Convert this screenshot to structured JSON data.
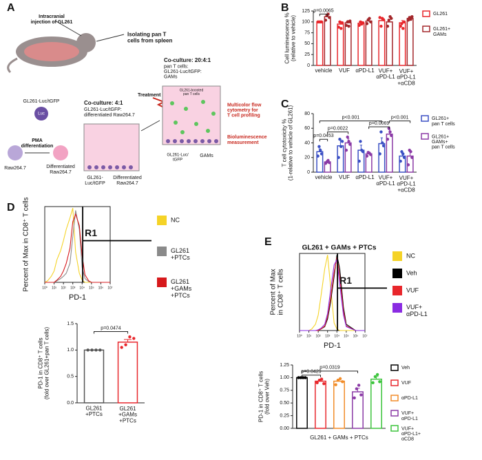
{
  "panels": [
    "A",
    "B",
    "C",
    "D",
    "E"
  ],
  "diagram": {
    "injection": "Intracranial\ninjection of GL261",
    "isolating": "Isolating pan T\ncells from spleen",
    "tumor_cells": "GL261-Luc/tGFP",
    "luc": "Luc",
    "pma": "PMA\ndifferentiation",
    "raw": "Raw264.7",
    "diff_raw": "Differentiated\nRaw264.7",
    "coculture1": "Co-culture: 4:1",
    "coculture1_desc": "GL261-Luc/tGFP:\ndifferentiated Raw264.7",
    "well1_left": "GL261-\nLuc/tGFP",
    "well1_right": "Differentiated\nRaw264.7",
    "treatment": "Treatment",
    "coculture2": "Co-culture: 20:4:1",
    "coculture2_desc": "pan T cells:\nGL261-Luc/tGFP:\nGAMs",
    "boosted": "GL261-boosted\npan T cells",
    "flow": "Multicolor flow\ncytometry for\nT cell profiling",
    "biolum": "Bioluminescence\nmeasurement",
    "well2_left": "GL261-Luc/\ntGFP",
    "well2_right": "GAMs"
  },
  "chart_data": [
    {
      "type": "bar",
      "ylabel": "Cell luminescence %\n(relative to vehicle)",
      "categories": [
        "vehicle",
        "VUF",
        "αPD-L1",
        "VUF+\nαPD-L1",
        "VUF+\nαPD-L1\n+αCD8"
      ],
      "series": [
        {
          "name": "GL261",
          "color": "#e8262b",
          "values": [
            100,
            95,
            97,
            103,
            98
          ],
          "errors": [
            0,
            6,
            4,
            7,
            5
          ],
          "points": [
            [
              100,
              100,
              100,
              100
            ],
            [
              88,
              100,
              85,
              98
            ],
            [
              92,
              100,
              95,
              98
            ],
            [
              110,
              90,
              108,
              105
            ],
            [
              90,
              96,
              85,
              100
            ]
          ]
        },
        {
          "name": "GL261+\nGAMs",
          "color": "#a3262a",
          "values": [
            112,
            98,
            102,
            100,
            108
          ],
          "errors": [
            4,
            5,
            5,
            6,
            4
          ],
          "points": [
            [
              104,
              115,
              118,
              110
            ],
            [
              92,
              100,
              90,
              102
            ],
            [
              96,
              105,
              108,
              100
            ],
            [
              90,
              104,
              112,
              108
            ],
            [
              104,
              110,
              106,
              112
            ]
          ]
        }
      ],
      "ylim": [
        0,
        125
      ],
      "yticks": [
        0,
        25,
        50,
        75,
        100,
        125
      ],
      "legend": "right",
      "annotations": [
        "p=0.0065"
      ]
    },
    {
      "type": "bar",
      "ylabel": "T cell cytotoxicity %\n(1-relative to vehicle of GL261)",
      "categories": [
        "vehicle",
        "VUF",
        "αPD-L1",
        "VUF+\nαPD-L1",
        "VUF+\nαPD-L1\n+αCD8"
      ],
      "series": [
        {
          "name": "GL261+\npan T cells",
          "color": "#3a4fc4",
          "values": [
            28,
            36,
            30,
            39,
            22
          ],
          "errors": [
            4,
            8,
            7,
            8,
            4
          ],
          "points": [
            [
              22,
              35,
              30,
              25
            ],
            [
              20,
              45,
              35,
              42
            ],
            [
              15,
              42,
              30,
              28
            ],
            [
              25,
              55,
              40,
              36
            ],
            [
              15,
              28,
              25,
              20
            ]
          ]
        },
        {
          "name": "GL261+\nGAMs+\npan T cells",
          "color": "#8b3aa6",
          "values": [
            14,
            40,
            25,
            52,
            22
          ],
          "errors": [
            2,
            6,
            2,
            6,
            6
          ],
          "points": [
            [
              12,
              14,
              16,
              13
            ],
            [
              30,
              48,
              42,
              38
            ],
            [
              22,
              27,
              26,
              24
            ],
            [
              45,
              60,
              55,
              50
            ],
            [
              10,
              30,
              28,
              20
            ]
          ]
        }
      ],
      "ylim": [
        0,
        80
      ],
      "yticks": [
        0,
        20,
        40,
        60,
        80
      ],
      "legend": "right",
      "annotations": [
        "p=0.0453",
        "p=0.0022",
        "p<0.001",
        "p=0.0069",
        "p<0.001"
      ]
    },
    {
      "type": "line",
      "ylabel": "Percent of Max in CD8⁺ T cells",
      "xlabel": "PD-1",
      "xlog": true,
      "xlim": [
        1,
        10000000
      ],
      "xticks": [
        {
          "value": 1,
          "label": "10⁰"
        },
        {
          "value": 10,
          "label": "10¹"
        },
        {
          "value": 100,
          "label": "10²"
        },
        {
          "value": 1000,
          "label": "10³"
        },
        {
          "value": 10000,
          "label": "10⁴"
        },
        {
          "value": 100000,
          "label": "10⁵"
        },
        {
          "value": 1000000,
          "label": "10⁶"
        },
        {
          "value": 10000000,
          "label": "10⁷"
        }
      ],
      "x": [
        1,
        2,
        5,
        10,
        20,
        50,
        100,
        200,
        500,
        1000,
        2000,
        5000,
        10000,
        20000,
        50000,
        100000,
        1000000,
        10000000
      ],
      "ylim": [
        0,
        100
      ],
      "gate": "R1",
      "series": [
        {
          "name": "NC",
          "color": "#f5d327",
          "values": [
            0,
            2,
            8,
            15,
            30,
            42,
            55,
            70,
            85,
            98,
            40,
            12,
            3,
            0,
            0,
            0,
            0,
            0
          ]
        },
        {
          "name": "GL261\n+PTCs",
          "color": "#8a8a8a",
          "values": [
            0,
            0,
            0,
            0,
            2,
            5,
            8,
            12,
            25,
            60,
            95,
            70,
            20,
            5,
            1,
            0,
            0,
            0
          ]
        },
        {
          "name": "GL261\n+GAMs\n+PTCs",
          "color": "#d7191c",
          "values": [
            0,
            0,
            0,
            0,
            3,
            8,
            15,
            25,
            45,
            80,
            90,
            75,
            35,
            10,
            2,
            0,
            0,
            0
          ]
        }
      ]
    },
    {
      "type": "bar",
      "ylabel": "PD-1 in CD8⁺ T cells\n(fold over GL261+pan T cells)",
      "categories": [
        "GL261\n+PTCs",
        "GL261\n+GAMs\n+PTCs"
      ],
      "series": [
        {
          "colors": [
            "#555555",
            "#e8262b"
          ],
          "values": [
            1.0,
            1.15
          ],
          "errors": [
            0,
            0.05
          ],
          "points": [
            [
              1,
              1,
              1,
              1
            ],
            [
              1.05,
              1.1,
              1.25,
              1.22
            ]
          ]
        }
      ],
      "ylim": [
        0,
        1.5
      ],
      "yticks": [
        {
          "value": 0,
          "label": "0.0"
        },
        0.5,
        {
          "value": 1,
          "label": "1.0"
        },
        1.5
      ],
      "annotations": [
        "p=0.0474"
      ]
    },
    {
      "type": "line",
      "title": "GL261 + GAMs + PTCs",
      "ylabel": "Percent of Max\nin CD8⁺ T cells",
      "xlabel": "PD-1",
      "xlog": true,
      "xlim": [
        1,
        10000000
      ],
      "xticks": [
        {
          "value": 1,
          "label": "10⁰"
        },
        {
          "value": 10,
          "label": "10¹"
        },
        {
          "value": 100,
          "label": "10²"
        },
        {
          "value": 1000,
          "label": "10³"
        },
        {
          "value": 10000,
          "label": "10⁴"
        },
        {
          "value": 100000,
          "label": "10⁵"
        },
        {
          "value": 1000000,
          "label": "10⁶"
        },
        {
          "value": 10000000,
          "label": "10⁷"
        }
      ],
      "x": [
        1,
        2,
        5,
        10,
        20,
        50,
        100,
        200,
        500,
        1000,
        2000,
        5000,
        10000,
        20000,
        50000,
        100000,
        1000000,
        10000000
      ],
      "ylim": [
        0,
        100
      ],
      "gate": "R1",
      "series": [
        {
          "name": "NC",
          "color": "#f5d327",
          "values": [
            0,
            0,
            0,
            0,
            2,
            8,
            20,
            45,
            80,
            98,
            60,
            10,
            2,
            0,
            0,
            0,
            0,
            0
          ]
        },
        {
          "name": "Veh",
          "color": "#000000",
          "values": [
            0,
            0,
            0,
            0,
            0,
            0,
            0,
            2,
            5,
            15,
            35,
            70,
            98,
            80,
            30,
            8,
            0,
            0
          ]
        },
        {
          "name": "VUF",
          "color": "#e8262b",
          "values": [
            0,
            0,
            0,
            0,
            0,
            0,
            0,
            2,
            6,
            18,
            40,
            75,
            95,
            70,
            25,
            6,
            0,
            0
          ]
        },
        {
          "name": "VUF+\nαPD-L1",
          "color": "#8a2be2",
          "values": [
            0,
            0,
            0,
            0,
            0,
            0,
            1,
            3,
            8,
            22,
            50,
            85,
            92,
            60,
            20,
            5,
            0,
            0
          ]
        }
      ]
    },
    {
      "type": "bar",
      "ylabel": "PD-1 in CD8⁺ T cells\n(fold over Veh)",
      "xlabel": "GL261 + GAMs + PTCs",
      "categories": [
        "Veh",
        "VUF",
        "αPD-L1",
        "VUF+\nαPD-L1",
        "VUF+\nαPD-L1+\nαCD8"
      ],
      "series": [
        {
          "colors": [
            "#000000",
            "#e8262b",
            "#f28c28",
            "#8b3aa6",
            "#3cc43c"
          ],
          "values": [
            1.0,
            0.93,
            0.93,
            0.72,
            0.97
          ],
          "errors": [
            0,
            0.03,
            0.04,
            0.07,
            0.05
          ],
          "points": [
            [
              1,
              1,
              1,
              1
            ],
            [
              0.9,
              0.95,
              0.97,
              0.88
            ],
            [
              0.86,
              0.95,
              0.98,
              0.92
            ],
            [
              0.6,
              0.78,
              0.85,
              0.66
            ],
            [
              0.9,
              1.02,
              1.06,
              0.92
            ]
          ]
        }
      ],
      "ylim": [
        0,
        1.25
      ],
      "yticks": [
        {
          "value": 0,
          "label": "0.00"
        },
        {
          "value": 0.25,
          "label": "0.25"
        },
        {
          "value": 0.5,
          "label": "0.50"
        },
        {
          "value": 0.75,
          "label": "0.75"
        },
        {
          "value": 1,
          "label": "1.00"
        },
        {
          "value": 1.25,
          "label": "1.25"
        }
      ],
      "legend": "right",
      "annotations": [
        "p=0.0429",
        "p=0.0319"
      ]
    }
  ]
}
